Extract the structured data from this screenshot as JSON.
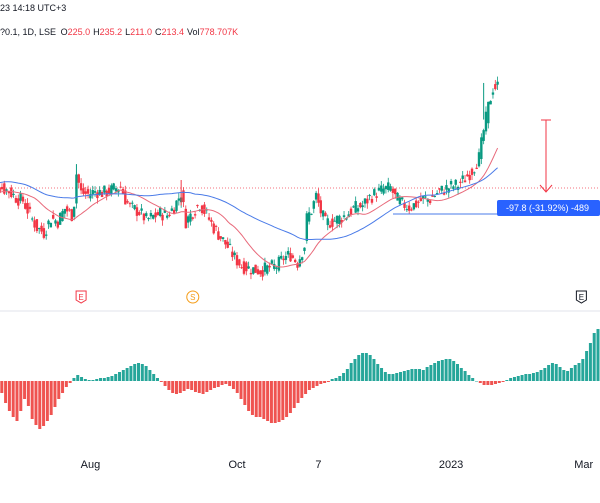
{
  "header": {
    "datetime": "23 14:18 UTC+3",
    "symbol_line": "?0.1, 1D, LSE",
    "ohlc": [
      {
        "label": "O",
        "value": "225.0"
      },
      {
        "label": "H",
        "value": "235.2"
      },
      {
        "label": "L",
        "value": "211.0"
      },
      {
        "label": "C",
        "value": "213.4"
      },
      {
        "label": "Vol",
        "value": "778.707K"
      }
    ]
  },
  "events": [
    {
      "letter": "E",
      "color": "#f23645",
      "date": "Jul 28"
    },
    {
      "letter": "S",
      "color": "#f59d18",
      "date": "Sep 14"
    },
    {
      "letter": "E",
      "color": "#131722",
      "date": "Feb 28"
    }
  ],
  "measure": {
    "label": "-97.8 (-31.92%) -489",
    "color": "#2962ff"
  },
  "colors": {
    "up": "#089981",
    "down": "#f23645",
    "ma_fast": "#e8697a",
    "ma_slow": "#4a7be8",
    "hist_up": "#26a69a",
    "hist_down": "#ef5350"
  },
  "chart_data": [
    {
      "type": "candlestick",
      "x_start": "2022-06-21",
      "x_end": "2023-03-08",
      "x_tick_labels": [
        "Aug",
        "Oct",
        "7",
        "2023",
        "Mar"
      ],
      "x_tick_dates": [
        "2022-08-01",
        "2022-10-03",
        "2022-11-07",
        "2023-01-03",
        "2023-03-01"
      ],
      "series": [
        {
          "values": [
            [
              -4,
              0.0
            ],
            [
              0,
              1.0
            ],
            [
              3,
              0.9
            ],
            [
              6,
              0.7
            ],
            [
              9,
              0.3
            ],
            [
              10,
              0.2
            ],
            [
              12,
              0.1
            ],
            [
              15,
              -0.8
            ],
            [
              18,
              -1.6
            ],
            [
              21,
              -1.9
            ],
            [
              24,
              -1.0
            ],
            [
              27,
              -1.2
            ],
            [
              30,
              -0.4
            ],
            [
              33,
              -0.8
            ],
            [
              34,
              0.0
            ],
            [
              35,
              1.8
            ],
            [
              37,
              0.6
            ],
            [
              40,
              0.5
            ],
            [
              43,
              0.7
            ],
            [
              46,
              0.6
            ],
            [
              49,
              0.7
            ],
            [
              52,
              0.9
            ],
            [
              54,
              1.0
            ],
            [
              56,
              0.2
            ],
            [
              58,
              -0.3
            ],
            [
              62,
              -0.6
            ],
            [
              65,
              -1.1
            ],
            [
              68,
              -0.9
            ],
            [
              71,
              -0.7
            ],
            [
              74,
              -0.8
            ],
            [
              77,
              -0.3
            ],
            [
              80,
              0.6
            ],
            [
              82,
              -1.2
            ],
            [
              85,
              -0.6
            ],
            [
              88,
              -0.1
            ],
            [
              91,
              -0.8
            ],
            [
              94,
              -1.6
            ],
            [
              97,
              -2.2
            ],
            [
              100,
              -2.8
            ],
            [
              103,
              -3.5
            ],
            [
              106,
              -4.0
            ],
            [
              110,
              -4.2
            ],
            [
              114,
              -4.3
            ],
            [
              118,
              -4.1
            ],
            [
              121,
              -4.0
            ],
            [
              124,
              -3.5
            ],
            [
              127,
              -3.3
            ],
            [
              130,
              -3.8
            ],
            [
              133,
              -2.7
            ],
            [
              134,
              -1.0
            ],
            [
              136,
              -0.5
            ],
            [
              138,
              0.4
            ],
            [
              140,
              -0.6
            ],
            [
              142,
              -1.3
            ],
            [
              145,
              -1.2
            ],
            [
              148,
              -1.0
            ],
            [
              151,
              -0.8
            ],
            [
              154,
              -0.4
            ],
            [
              158,
              -0.2
            ],
            [
              161,
              0.3
            ],
            [
              164,
              0.6
            ],
            [
              167,
              0.8
            ],
            [
              170,
              0.9
            ],
            [
              172,
              0.3
            ],
            [
              175,
              -0.1
            ],
            [
              178,
              -0.3
            ],
            [
              181,
              -0.1
            ],
            [
              184,
              0.2
            ],
            [
              187,
              0.2
            ],
            [
              190,
              0.6
            ],
            [
              193,
              0.8
            ],
            [
              196,
              1.0
            ],
            [
              199,
              1.1
            ],
            [
              202,
              1.5
            ],
            [
              205,
              2.0
            ],
            [
              208,
              2.8
            ],
            [
              210,
              4.5
            ],
            [
              212,
              6.0
            ],
            [
              214,
              7.2
            ],
            [
              216,
              7.3
            ]
          ]
        }
      ]
    },
    {
      "type": "bar",
      "series": [
        {
          "values": [
            -12,
            -22,
            -30,
            -36,
            -40,
            -30,
            -18,
            -25,
            -38,
            -44,
            -48,
            -45,
            -40,
            -34,
            -26,
            -18,
            -12,
            -6,
            -2,
            3,
            6,
            4,
            2,
            1,
            1,
            2,
            3,
            3,
            4,
            5,
            7,
            9,
            11,
            13,
            15,
            17,
            18,
            17,
            15,
            11,
            7,
            3,
            -1,
            -5,
            -9,
            -12,
            -13,
            -12,
            -10,
            -8,
            -9,
            -11,
            -12,
            -13,
            -11,
            -9,
            -7,
            -6,
            -4,
            -3,
            -5,
            -8,
            -12,
            -18,
            -24,
            -30,
            -34,
            -36,
            -36,
            -38,
            -40,
            -42,
            -42,
            -41,
            -39,
            -36,
            -32,
            -27,
            -22,
            -17,
            -13,
            -9,
            -7,
            -5,
            -3,
            -2,
            -1,
            2,
            3,
            5,
            8,
            12,
            18,
            22,
            26,
            28,
            28,
            26,
            22,
            17,
            13,
            9,
            7,
            7,
            8,
            9,
            10,
            11,
            12,
            12,
            12,
            11,
            14,
            16,
            18,
            20,
            21,
            22,
            22,
            20,
            17,
            13,
            10,
            6,
            3,
            0,
            -2,
            -4,
            -4,
            -4,
            -3,
            -2,
            -1,
            1,
            3,
            4,
            5,
            6,
            7,
            7,
            8,
            9,
            11,
            13,
            16,
            18,
            17,
            14,
            11,
            10,
            13,
            16,
            18,
            22,
            30,
            38,
            48,
            52
          ]
        }
      ]
    }
  ]
}
